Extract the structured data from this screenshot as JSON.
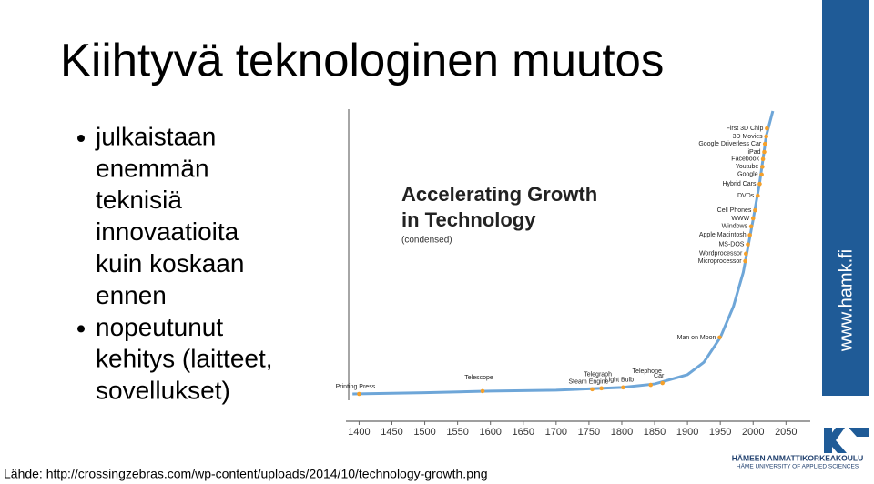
{
  "slide": {
    "title": "Kiihtyvä teknologinen muutos",
    "bullets": [
      [
        "julkaistaan",
        "enemmän",
        "teknisiä",
        "innovaatioita",
        "kuin koskaan",
        "ennen"
      ],
      [
        "nopeutunut",
        "kehitys (laitteet,",
        "sovellukset)"
      ]
    ],
    "sidebar": "www.hamk.fi",
    "logo_lines": [
      "HÄMEEN AMMATTIKORKEAKOULU",
      "HÄME UNIVERSITY OF APPLIED SCIENCES"
    ],
    "source": "Lähde: http://crossingzebras.com/wp-content/uploads/2014/10/technology-growth.png"
  },
  "chart_data": {
    "type": "line",
    "title": [
      "Accelerating Growth",
      "in Technology"
    ],
    "subtitle": "(condensed)",
    "xlim": [
      1380,
      2087
    ],
    "xticks": [
      1400,
      1450,
      1500,
      1550,
      1600,
      1650,
      1700,
      1750,
      1800,
      1850,
      1900,
      1950,
      2000,
      2050
    ],
    "ylim": [
      0,
      100
    ],
    "curve": {
      "color": "#6ea6d8",
      "x": [
        1390,
        1500,
        1600,
        1700,
        1800,
        1850,
        1900,
        1925,
        1950,
        1970,
        1985,
        2000,
        2010,
        2020,
        2030
      ],
      "values": [
        8.8,
        9.2,
        9.7,
        10,
        10.9,
        12,
        15,
        19,
        27,
        37,
        48,
        65,
        77,
        92,
        100
      ]
    },
    "events": {
      "color": "#f5a02a",
      "labels": [
        "Printing Press",
        "Telescope",
        "Steam Engine",
        "Telegraph",
        "Light Bulb",
        "Telephone",
        "Car",
        "Man on Moon",
        "Microprocessor",
        "Wordprocessor",
        "MS-DOS",
        "Apple Macintosh",
        "Windows",
        "WWW",
        "Cell Phones",
        "DVDs",
        "Hybrid Cars",
        "Google",
        "Youtube",
        "Facebook",
        "iPad",
        "Google Driverless Car",
        "3D Movies",
        "First 3D Chip"
      ],
      "x": [
        1400,
        1588,
        1755,
        1769,
        1802,
        1844,
        1862,
        1949,
        1988,
        1989,
        1992,
        1995,
        1997,
        2000,
        2003,
        2007,
        2010,
        2013,
        2014,
        2015,
        2017,
        2018,
        2020,
        2021
      ],
      "values": [
        8.8,
        9.7,
        10.3,
        10.6,
        10.9,
        11.7,
        12.3,
        27,
        51.6,
        54,
        57,
        60,
        62.8,
        65.4,
        68,
        72.7,
        76.5,
        79.5,
        82,
        84.5,
        86.8,
        89.4,
        91.8,
        94.4
      ]
    }
  }
}
